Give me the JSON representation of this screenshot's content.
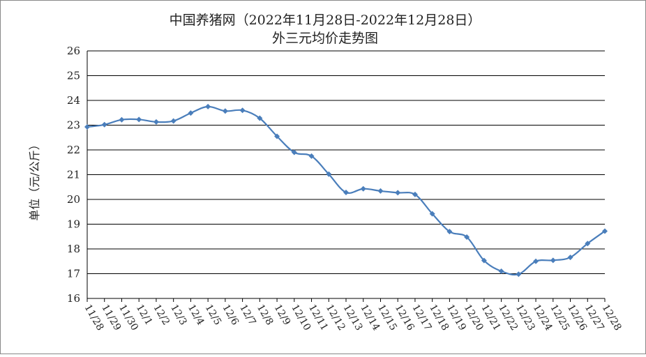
{
  "chart_data": {
    "type": "line",
    "title": "中国养猪网（2022年11月28日-2022年12月28日）",
    "subtitle": "外三元均价走势图",
    "y_label": "单位（元/公斤）",
    "categories": [
      "11/28",
      "11/29",
      "11/30",
      "12/1",
      "12/2",
      "12/3",
      "12/4",
      "12/5",
      "12/6",
      "12/7",
      "12/8",
      "12/9",
      "12/10",
      "12/11",
      "12/12",
      "12/13",
      "12/14",
      "12/15",
      "12/16",
      "12/17",
      "12/18",
      "12/19",
      "12/20",
      "12/21",
      "12/22",
      "12/23",
      "12/24",
      "12/25",
      "12/26",
      "12/27",
      "12/28"
    ],
    "series": [
      {
        "name": "外三元",
        "color": "#4a7ebb",
        "values": [
          22.93,
          23.02,
          23.22,
          23.23,
          23.13,
          23.17,
          23.49,
          23.75,
          23.57,
          23.6,
          23.28,
          22.55,
          21.9,
          21.75,
          21.02,
          20.28,
          20.43,
          20.34,
          20.27,
          20.2,
          19.42,
          18.7,
          18.48,
          17.53,
          17.1,
          16.98,
          17.5,
          17.54,
          17.66,
          18.22,
          18.72
        ]
      }
    ],
    "ylim": [
      16,
      26
    ],
    "yticks": [
      16,
      17,
      18,
      19,
      20,
      21,
      22,
      23,
      24,
      25,
      26
    ],
    "grid": true
  }
}
